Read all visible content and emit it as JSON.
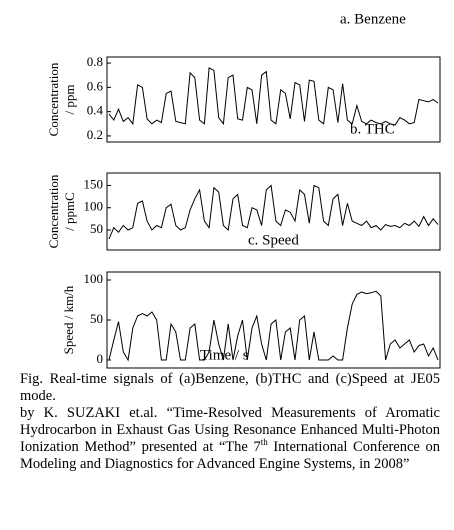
{
  "chart_data": [
    {
      "type": "line",
      "label": "a. Benzene",
      "ylabel": [
        "Concentration",
        "/ ppm"
      ],
      "ylim": [
        0.15,
        0.85
      ],
      "yticks": [
        0.2,
        0.4,
        0.6,
        0.8
      ],
      "color": "#000000",
      "values": [
        0.38,
        0.33,
        0.42,
        0.32,
        0.35,
        0.3,
        0.62,
        0.6,
        0.34,
        0.3,
        0.33,
        0.31,
        0.55,
        0.57,
        0.32,
        0.31,
        0.3,
        0.72,
        0.68,
        0.33,
        0.3,
        0.76,
        0.74,
        0.35,
        0.3,
        0.68,
        0.7,
        0.34,
        0.33,
        0.6,
        0.58,
        0.3,
        0.7,
        0.73,
        0.33,
        0.3,
        0.58,
        0.55,
        0.34,
        0.64,
        0.62,
        0.32,
        0.66,
        0.65,
        0.33,
        0.3,
        0.6,
        0.58,
        0.31,
        0.63,
        0.33,
        0.3,
        0.45,
        0.32,
        0.3,
        0.33,
        0.31,
        0.3,
        0.32,
        0.3,
        0.29,
        0.35,
        0.33,
        0.3,
        0.31,
        0.5,
        0.49,
        0.48,
        0.5,
        0.47
      ]
    },
    {
      "type": "line",
      "label": "b. THC",
      "ylabel": [
        "Concentration",
        "/ ppmC"
      ],
      "ylim": [
        5,
        178
      ],
      "yticks": [
        50,
        100,
        150
      ],
      "color": "#000000",
      "values": [
        30,
        55,
        45,
        60,
        50,
        55,
        110,
        115,
        70,
        50,
        60,
        55,
        100,
        108,
        60,
        50,
        55,
        95,
        120,
        140,
        70,
        55,
        145,
        135,
        60,
        50,
        120,
        130,
        60,
        55,
        100,
        95,
        60,
        140,
        150,
        70,
        60,
        95,
        90,
        70,
        140,
        130,
        65,
        150,
        145,
        70,
        60,
        120,
        130,
        60,
        110,
        70,
        65,
        60,
        70,
        55,
        60,
        50,
        62,
        58,
        60,
        55,
        65,
        60,
        70,
        58,
        80,
        60,
        75,
        62
      ]
    },
    {
      "type": "line",
      "label": "c. Speed",
      "ylabel": [
        "Speed / km/h"
      ],
      "xlabel": "Time / s",
      "ylim": [
        -10,
        110
      ],
      "yticks": [
        0,
        50,
        100
      ],
      "color": "#000000",
      "values": [
        0,
        25,
        48,
        10,
        0,
        40,
        55,
        58,
        55,
        60,
        50,
        0,
        0,
        45,
        35,
        0,
        0,
        40,
        45,
        0,
        0,
        10,
        50,
        20,
        0,
        45,
        0,
        30,
        50,
        0,
        40,
        55,
        20,
        0,
        45,
        50,
        0,
        35,
        40,
        0,
        50,
        55,
        0,
        35,
        0,
        0,
        0,
        5,
        0,
        0,
        40,
        70,
        82,
        85,
        83,
        84,
        86,
        80,
        0,
        20,
        25,
        15,
        20,
        25,
        10,
        18,
        20,
        5,
        15,
        0
      ]
    }
  ],
  "caption": {
    "figure": "Fig.  Real-time signals of (a)Benzene, (b)THC and (c)Speed at JE05 mode.",
    "credit": [
      "by K. SUZAKI et.al. “Time-Resolved Measurements of Aromatic Hydrocarbon in Exhaust Gas Using Resonance Enhanced Multi-Photon Ionization Method” presented at “The 7",
      "th",
      " International Conference on Modeling and Diagnostics for Advanced Engine Systems, in 2008”"
    ]
  }
}
